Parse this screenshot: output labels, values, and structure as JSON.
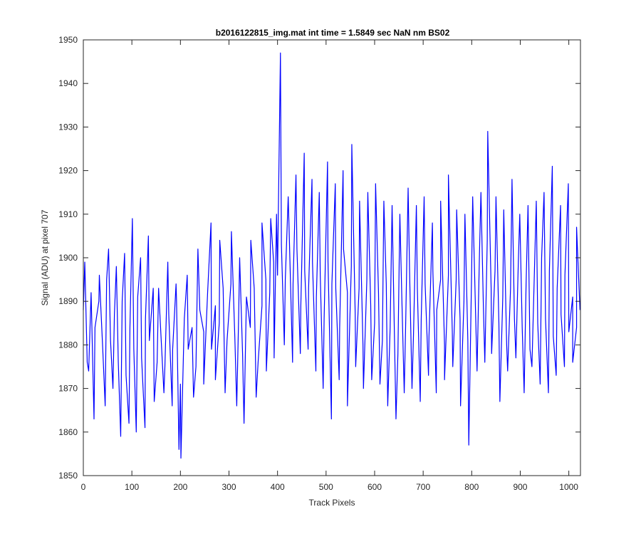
{
  "chart_data": {
    "type": "line",
    "title": "b2016122815_img.mat int time = 1.5849 sec  NaN nm BS02",
    "xlabel": "Track Pixels",
    "ylabel": "Signal (ADU) at pixel 707",
    "xlim": [
      0,
      1024
    ],
    "ylim": [
      1850,
      1950
    ],
    "xticks": [
      0,
      100,
      200,
      300,
      400,
      500,
      600,
      700,
      800,
      900,
      1000
    ],
    "yticks": [
      1850,
      1860,
      1870,
      1880,
      1890,
      1900,
      1910,
      1920,
      1930,
      1940,
      1950
    ],
    "grid": false,
    "legend": "none",
    "line_color": "#0000ff",
    "series": [
      {
        "x": [
          0,
          8,
          16,
          24,
          32,
          40,
          48,
          56,
          64,
          72,
          80,
          88,
          96,
          104,
          112,
          120,
          128,
          136,
          144,
          152,
          160,
          168,
          176,
          184,
          192,
          200,
          208,
          216,
          224,
          232,
          240,
          248,
          256,
          264,
          272,
          280,
          288,
          296,
          304,
          312,
          320,
          328,
          336,
          344,
          352,
          360,
          368,
          376,
          384,
          392,
          400,
          408,
          416,
          424,
          432,
          440,
          448,
          456,
          464,
          472,
          480,
          488,
          496,
          504,
          512,
          520,
          528,
          536,
          544,
          552,
          560,
          568,
          576,
          584,
          592,
          600,
          608,
          616,
          624,
          632,
          640,
          648,
          656,
          664,
          672,
          680,
          688,
          696,
          704,
          712,
          720,
          728,
          736,
          744,
          752,
          760,
          768,
          776,
          784,
          792,
          800,
          808,
          816,
          824,
          832,
          840,
          848,
          856,
          864,
          872,
          880,
          888,
          896,
          904,
          912,
          920,
          928,
          936,
          944,
          952,
          960,
          968,
          976,
          984,
          992,
          1000,
          1008,
          1016,
          1023
        ],
        "values": [
          1888,
          1876,
          1892,
          1884,
          1890,
          1879,
          1895,
          1881,
          1887,
          1876,
          1890,
          1873,
          1884,
          1879,
          1891,
          1877,
          1886,
          1881,
          1893,
          1876,
          1882,
          1875,
          1887,
          1879,
          1890,
          1871,
          1886,
          1879,
          1884,
          1875,
          1888,
          1883,
          1892,
          1879,
          1889,
          1885,
          1893,
          1881,
          1894,
          1882,
          1887,
          1878,
          1891,
          1884,
          1893,
          1876,
          1889,
          1895,
          1892,
          1899,
          1896,
          1903,
          1895,
          1906,
          1894,
          1902,
          1889,
          1897,
          1893,
          1899,
          1891,
          1896,
          1886,
          1899,
          1894,
          1893,
          1884,
          1902,
          1892,
          1898,
          1887,
          1893,
          1880,
          1895,
          1889,
          1885,
          1892,
          1881,
          1894,
          1884,
          1887,
          1878,
          1891,
          1885,
          1897,
          1882,
          1893,
          1886,
          1894,
          1882,
          1897,
          1888,
          1895,
          1880,
          1896,
          1883,
          1895,
          1886,
          1890,
          1881,
          1898,
          1887,
          1901,
          1889,
          1904,
          1893,
          1897,
          1885,
          1891,
          1880,
          1893,
          1886,
          1899,
          1884,
          1894,
          1879,
          1892,
          1885,
          1900,
          1886,
          1897,
          1882,
          1893,
          1887,
          1896,
          1883,
          1891,
          1884,
          1888
        ]
      },
      {
        "x": [
          3,
          11,
          22,
          33,
          45,
          52,
          61,
          68,
          77,
          85,
          94,
          101,
          109,
          118,
          127,
          134,
          146,
          155,
          166,
          174,
          183,
          191,
          197,
          201,
          214,
          227,
          236,
          248,
          263,
          272,
          281,
          292,
          305,
          316,
          322,
          331,
          345,
          356,
          368,
          377,
          386,
          393,
          398,
          406,
          414,
          422,
          431,
          438,
          447,
          455,
          463,
          471,
          479,
          486,
          494,
          503,
          511,
          519,
          527,
          535,
          544,
          553,
          561,
          569,
          577,
          586,
          594,
          602,
          611,
          619,
          627,
          636,
          644,
          652,
          661,
          669,
          677,
          686,
          694,
          702,
          711,
          719,
          727,
          736,
          744,
          752,
          761,
          769,
          777,
          786,
          794,
          802,
          811,
          819,
          827,
          833,
          841,
          850,
          858,
          866,
          874,
          883,
          891,
          899,
          908,
          916,
          924,
          933,
          941,
          949,
          958,
          966,
          974,
          983,
          991,
          999,
          1008,
          1016
        ],
        "values": [
          1899,
          1874,
          1863,
          1896,
          1866,
          1902,
          1870,
          1898,
          1859,
          1901,
          1862,
          1909,
          1860,
          1900,
          1861,
          1905,
          1867,
          1893,
          1869,
          1899,
          1866,
          1894,
          1856,
          1854,
          1896,
          1868,
          1902,
          1871,
          1908,
          1872,
          1904,
          1869,
          1906,
          1866,
          1900,
          1862,
          1904,
          1868,
          1908,
          1874,
          1909,
          1877,
          1910,
          1947,
          1880,
          1914,
          1876,
          1919,
          1878,
          1924,
          1879,
          1918,
          1874,
          1915,
          1870,
          1922,
          1863,
          1917,
          1872,
          1920,
          1866,
          1926,
          1875,
          1913,
          1870,
          1915,
          1872,
          1917,
          1871,
          1913,
          1866,
          1912,
          1863,
          1910,
          1869,
          1916,
          1870,
          1912,
          1867,
          1914,
          1873,
          1908,
          1869,
          1913,
          1872,
          1919,
          1875,
          1911,
          1866,
          1910,
          1857,
          1914,
          1874,
          1915,
          1876,
          1929,
          1878,
          1914,
          1867,
          1911,
          1874,
          1918,
          1877,
          1910,
          1869,
          1912,
          1875,
          1913,
          1871,
          1915,
          1869,
          1921,
          1873,
          1912,
          1875,
          1917,
          1876,
          1907
        ]
      }
    ]
  }
}
